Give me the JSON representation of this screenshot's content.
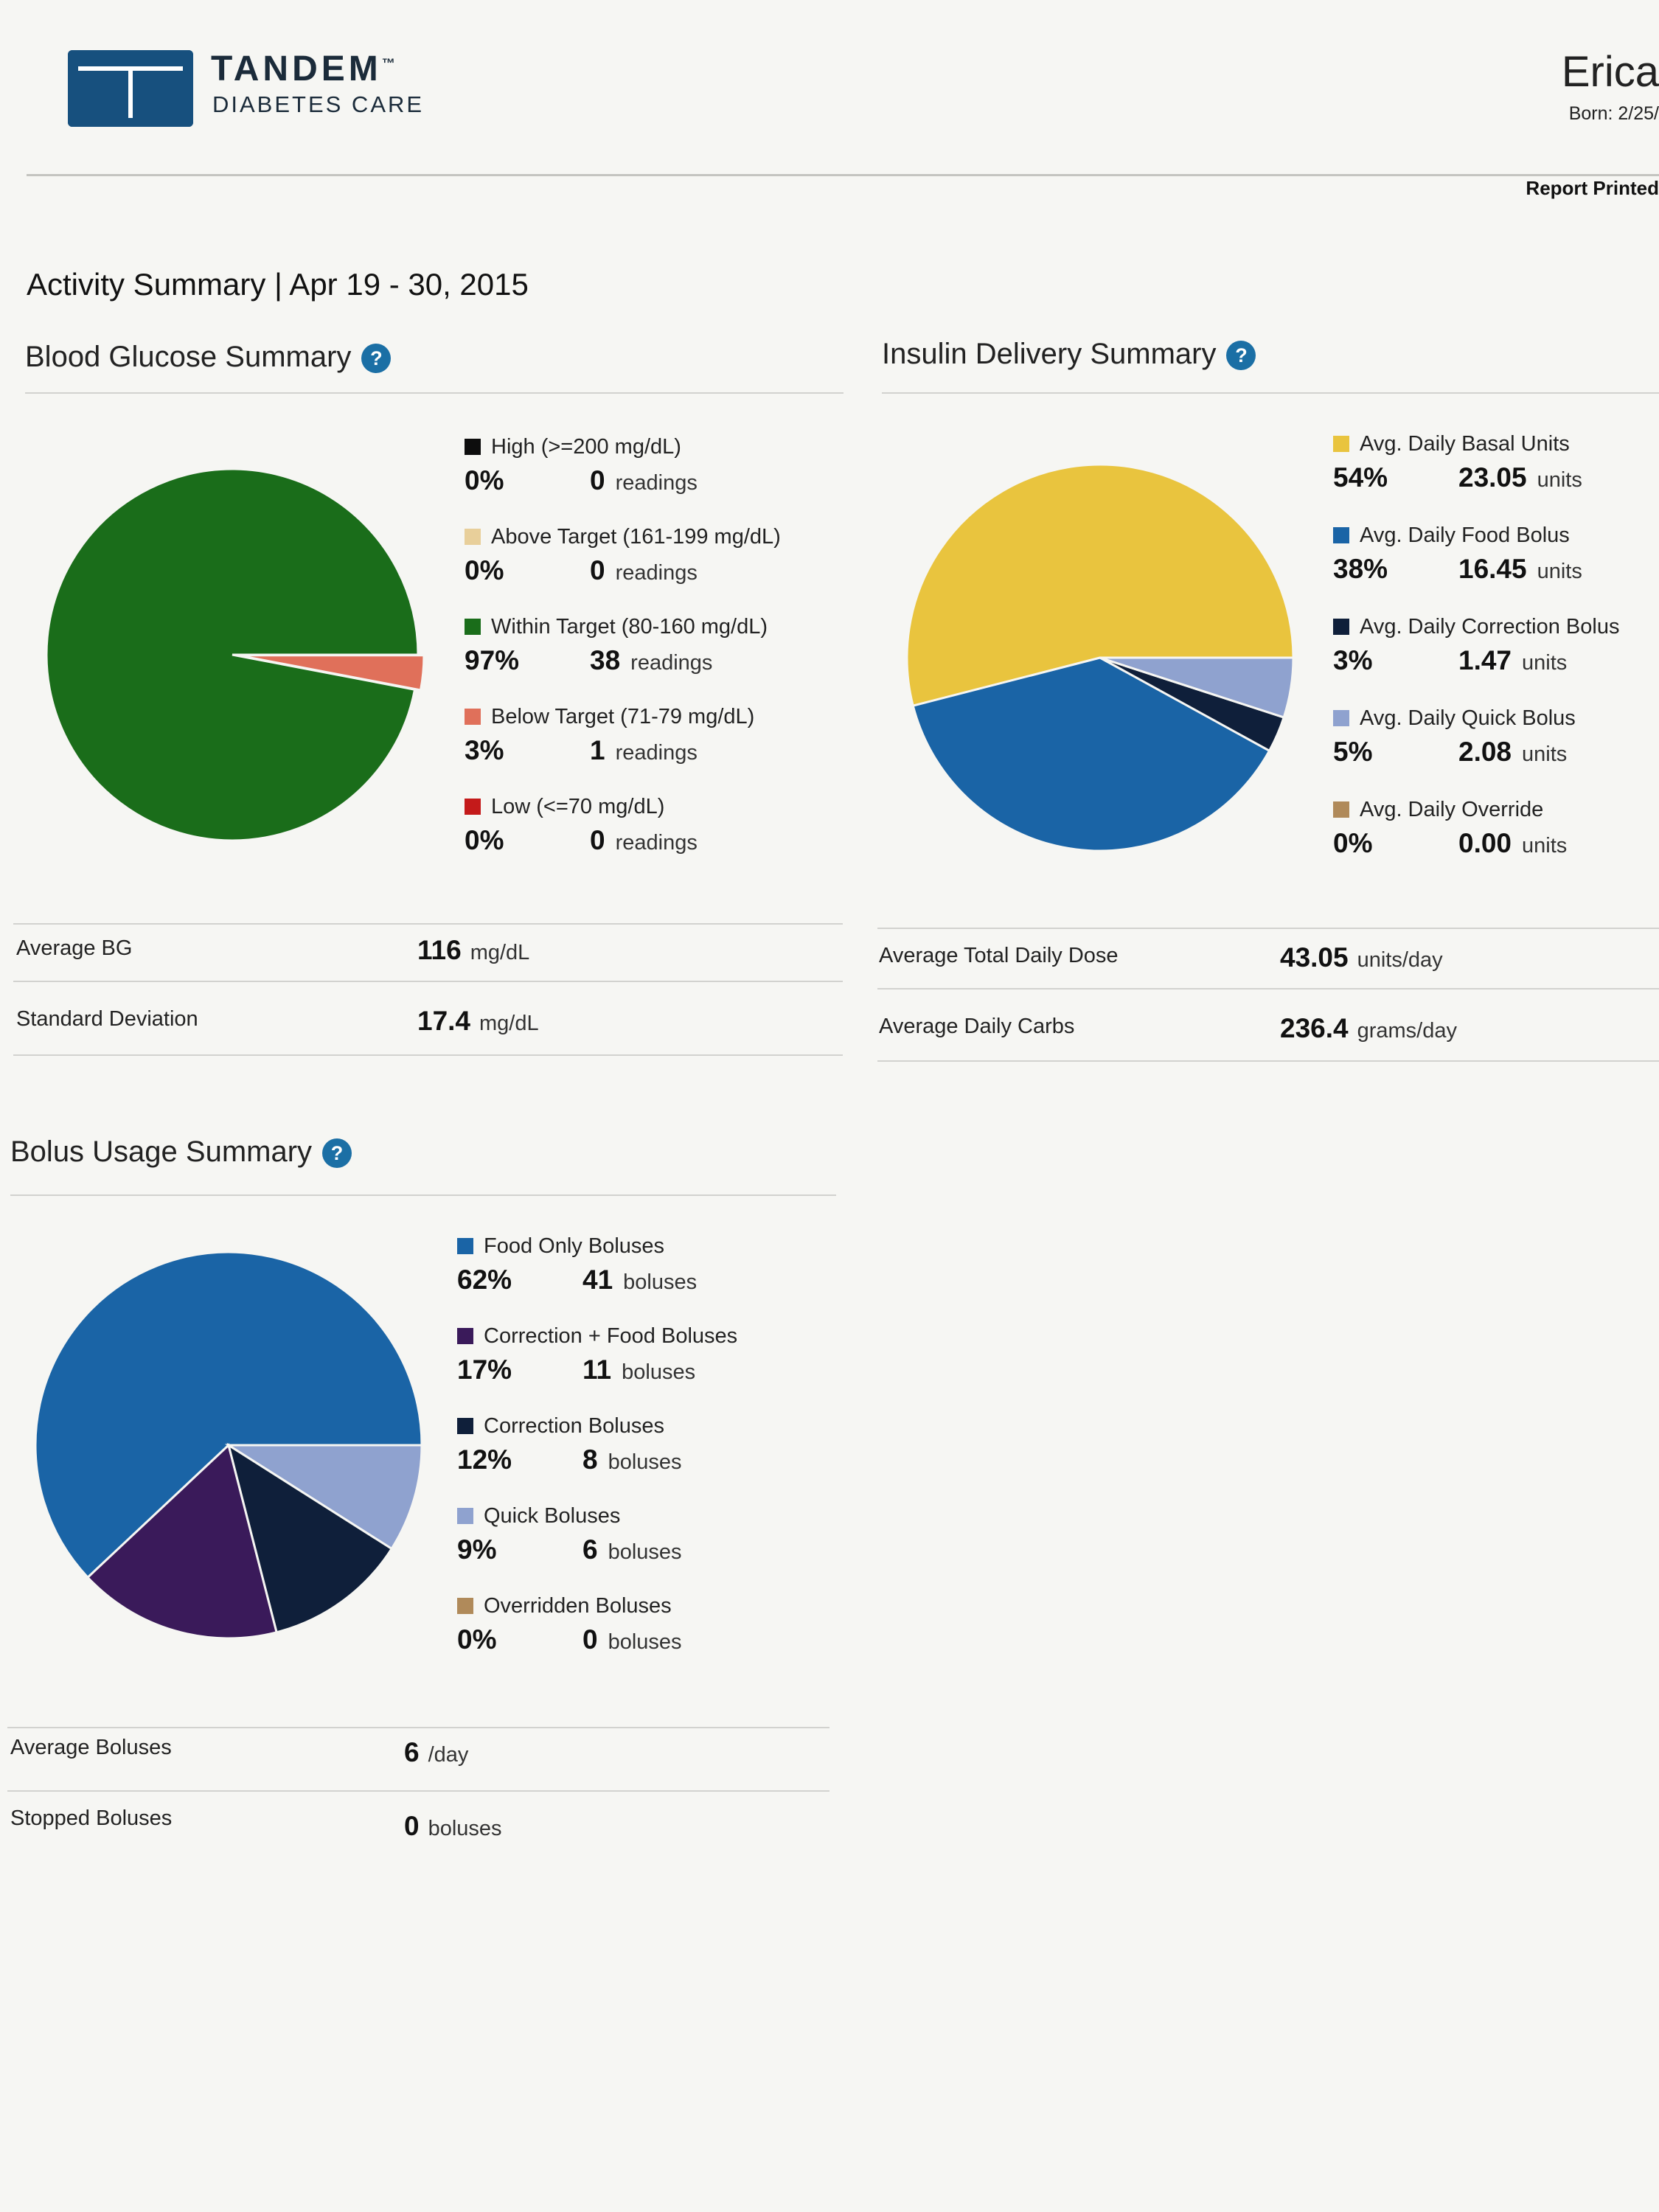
{
  "header": {
    "brand_name": "TANDEM",
    "brand_tm": "™",
    "brand_sub": "DIABETES CARE",
    "patient_name": "Erica",
    "born": "Born: 2/25/",
    "report_printed": "Report Printed"
  },
  "activity_title": "Activity Summary | Apr 19 - 30, 2015",
  "help_glyph": "?",
  "bg": {
    "title": "Blood Glucose Summary",
    "legend": [
      {
        "label": "High (>=200 mg/dL)",
        "pct": "0%",
        "count": "0",
        "unit": "readings",
        "color": "#0d0d0d"
      },
      {
        "label": "Above Target (161-199 mg/dL)",
        "pct": "0%",
        "count": "0",
        "unit": "readings",
        "color": "#e8cf9a"
      },
      {
        "label": "Within Target (80-160 mg/dL)",
        "pct": "97%",
        "count": "38",
        "unit": "readings",
        "color": "#1a6d1a"
      },
      {
        "label": "Below Target (71-79 mg/dL)",
        "pct": "3%",
        "count": "1",
        "unit": "readings",
        "color": "#e0705a"
      },
      {
        "label": "Low (<=70 mg/dL)",
        "pct": "0%",
        "count": "0",
        "unit": "readings",
        "color": "#c41a1a"
      }
    ],
    "stats": [
      {
        "label": "Average BG",
        "value": "116",
        "unit": "mg/dL"
      },
      {
        "label": "Standard Deviation",
        "value": "17.4",
        "unit": "mg/dL"
      }
    ]
  },
  "insulin": {
    "title": "Insulin Delivery Summary",
    "legend": [
      {
        "label": "Avg. Daily Basal Units",
        "pct": "54%",
        "count": "23.05",
        "unit": "units",
        "color": "#e9c43e"
      },
      {
        "label": "Avg. Daily Food Bolus",
        "pct": "38%",
        "count": "16.45",
        "unit": "units",
        "color": "#1a64a6"
      },
      {
        "label": "Avg. Daily Correction Bolus",
        "pct": "3%",
        "count": "1.47",
        "unit": "units",
        "color": "#0f1f3a"
      },
      {
        "label": "Avg. Daily Quick Bolus",
        "pct": "5%",
        "count": "2.08",
        "unit": "units",
        "color": "#8fa2cf"
      },
      {
        "label": "Avg. Daily Override",
        "pct": "0%",
        "count": "0.00",
        "unit": "units",
        "color": "#b08a5a"
      }
    ],
    "stats": [
      {
        "label": "Average Total Daily Dose",
        "value": "43.05",
        "unit": "units/day"
      },
      {
        "label": "Average Daily Carbs",
        "value": "236.4",
        "unit": "grams/day"
      }
    ]
  },
  "bolus": {
    "title": "Bolus Usage Summary",
    "legend": [
      {
        "label": "Food Only Boluses",
        "pct": "62%",
        "count": "41",
        "unit": "boluses",
        "color": "#1a64a6"
      },
      {
        "label": "Correction + Food Boluses",
        "pct": "17%",
        "count": "11",
        "unit": "boluses",
        "color": "#3a1a5a"
      },
      {
        "label": "Correction Boluses",
        "pct": "12%",
        "count": "8",
        "unit": "boluses",
        "color": "#0f1f3a"
      },
      {
        "label": "Quick Boluses",
        "pct": "9%",
        "count": "6",
        "unit": "boluses",
        "color": "#8fa2cf"
      },
      {
        "label": "Overridden Boluses",
        "pct": "0%",
        "count": "0",
        "unit": "boluses",
        "color": "#b08a5a"
      }
    ],
    "stats": [
      {
        "label": "Average Boluses",
        "value": "6",
        "unit": "/day"
      },
      {
        "label": "Stopped Boluses",
        "value": "0",
        "unit": "boluses"
      }
    ]
  },
  "chart_data": [
    {
      "type": "pie",
      "title": "Blood Glucose Summary",
      "categories": [
        "High (>=200 mg/dL)",
        "Above Target (161-199 mg/dL)",
        "Within Target (80-160 mg/dL)",
        "Below Target (71-79 mg/dL)",
        "Low (<=70 mg/dL)"
      ],
      "values": [
        0,
        0,
        97,
        3,
        0
      ],
      "colors": [
        "#0d0d0d",
        "#e8cf9a",
        "#1a6d1a",
        "#e0705a",
        "#c41a1a"
      ],
      "legend": "right"
    },
    {
      "type": "pie",
      "title": "Insulin Delivery Summary",
      "categories": [
        "Avg. Daily Basal Units",
        "Avg. Daily Food Bolus",
        "Avg. Daily Correction Bolus",
        "Avg. Daily Quick Bolus",
        "Avg. Daily Override"
      ],
      "values": [
        54,
        38,
        3,
        5,
        0
      ],
      "colors": [
        "#e9c43e",
        "#1a64a6",
        "#0f1f3a",
        "#8fa2cf",
        "#b08a5a"
      ],
      "legend": "right"
    },
    {
      "type": "pie",
      "title": "Bolus Usage Summary",
      "categories": [
        "Food Only Boluses",
        "Correction + Food Boluses",
        "Correction Boluses",
        "Quick Boluses",
        "Overridden Boluses"
      ],
      "values": [
        62,
        17,
        12,
        9,
        0
      ],
      "colors": [
        "#1a64a6",
        "#3a1a5a",
        "#0f1f3a",
        "#8fa2cf",
        "#b08a5a"
      ],
      "legend": "right"
    }
  ]
}
